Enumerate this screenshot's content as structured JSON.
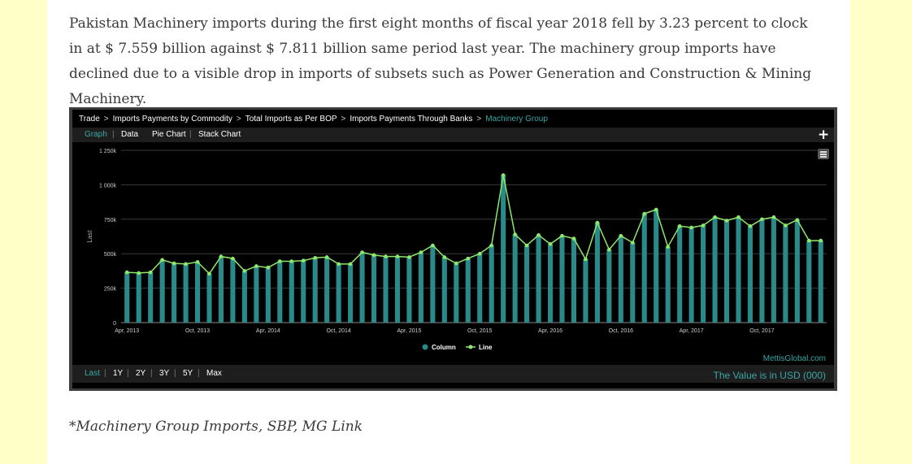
{
  "article": {
    "paragraph": "Pakistan Machinery imports during the first eight months of fiscal year 2018 fell by 3.23 percent to clock in at $ 7.559 billion against $ 7.811 billion same period last year. The machinery group imports have declined due to a visible drop in imports of subsets such as Power Generation and Construction & Mining Machinery.",
    "caption": "*Machinery Group Imports, SBP, MG Link"
  },
  "widget": {
    "breadcrumb": [
      "Trade",
      "Imports Payments by Commodity",
      "Total Imports as Per BOP",
      "Imports Payments Through Banks",
      "Machinery Group"
    ],
    "breadcrumb_sep": ">",
    "tabs": [
      "Graph",
      "Data",
      "Pie Chart",
      "Stack Chart"
    ],
    "active_tab": "Graph",
    "plus_icon": "plus-icon",
    "menu_icon": "hamburger-menu-icon",
    "watermark": "MettisGlobal.com",
    "range_buttons": [
      "Last",
      "1Y",
      "2Y",
      "3Y",
      "5Y",
      "Max"
    ],
    "active_range": "Last",
    "value_note": "The Value is in USD (000)",
    "colors": {
      "accent": "#3aa6a6",
      "column": "#2a8a8a",
      "line": "#8fe86b",
      "background": "#000000"
    }
  },
  "chart_data": {
    "type": "bar",
    "ylabel": "Last",
    "ylim": [
      0,
      1250000
    ],
    "y_ticks": [
      0,
      250000,
      500000,
      750000,
      1000000,
      1250000
    ],
    "y_tick_labels": [
      "0",
      "250k",
      "500k",
      "750k",
      "1 000k",
      "1 250k"
    ],
    "x_tick_labels": [
      {
        "index": 0,
        "label": "Apr, 2013"
      },
      {
        "index": 6,
        "label": "Oct, 2013"
      },
      {
        "index": 12,
        "label": "Apr, 2014"
      },
      {
        "index": 18,
        "label": "Oct, 2014"
      },
      {
        "index": 24,
        "label": "Apr, 2015"
      },
      {
        "index": 30,
        "label": "Oct, 2015"
      },
      {
        "index": 36,
        "label": "Apr, 2016"
      },
      {
        "index": 42,
        "label": "Oct, 2016"
      },
      {
        "index": 48,
        "label": "Apr, 2017"
      },
      {
        "index": 54,
        "label": "Oct, 2017"
      }
    ],
    "categories": [
      "2013-04",
      "2013-05",
      "2013-06",
      "2013-07",
      "2013-08",
      "2013-09",
      "2013-10",
      "2013-11",
      "2013-12",
      "2014-01",
      "2014-02",
      "2014-03",
      "2014-04",
      "2014-05",
      "2014-06",
      "2014-07",
      "2014-08",
      "2014-09",
      "2014-10",
      "2014-11",
      "2014-12",
      "2015-01",
      "2015-02",
      "2015-03",
      "2015-04",
      "2015-05",
      "2015-06",
      "2015-07",
      "2015-08",
      "2015-09",
      "2015-10",
      "2015-11",
      "2015-12",
      "2016-01",
      "2016-02",
      "2016-03",
      "2016-04",
      "2016-05",
      "2016-06",
      "2016-07",
      "2016-08",
      "2016-09",
      "2016-10",
      "2016-11",
      "2016-12",
      "2017-01",
      "2017-02",
      "2017-03",
      "2017-04",
      "2017-05",
      "2017-06",
      "2017-07",
      "2017-08",
      "2017-09",
      "2017-10",
      "2017-11",
      "2017-12",
      "2018-01",
      "2018-02",
      "2018-03"
    ],
    "series": [
      {
        "name": "Column",
        "kind": "column",
        "values": [
          365000,
          360000,
          365000,
          455000,
          430000,
          425000,
          440000,
          355000,
          480000,
          465000,
          375000,
          410000,
          400000,
          445000,
          445000,
          450000,
          470000,
          475000,
          425000,
          425000,
          510000,
          490000,
          480000,
          480000,
          475000,
          510000,
          560000,
          475000,
          430000,
          465000,
          500000,
          560000,
          1070000,
          640000,
          560000,
          635000,
          570000,
          630000,
          610000,
          460000,
          725000,
          530000,
          630000,
          580000,
          790000,
          820000,
          550000,
          700000,
          690000,
          705000,
          765000,
          740000,
          765000,
          700000,
          750000,
          765000,
          705000,
          745000,
          595000,
          595000
        ]
      },
      {
        "name": "Line",
        "kind": "line",
        "values": [
          365000,
          360000,
          365000,
          455000,
          430000,
          425000,
          440000,
          355000,
          480000,
          465000,
          375000,
          410000,
          400000,
          445000,
          445000,
          450000,
          470000,
          475000,
          425000,
          425000,
          510000,
          490000,
          480000,
          480000,
          475000,
          510000,
          560000,
          475000,
          430000,
          465000,
          500000,
          560000,
          1070000,
          640000,
          560000,
          635000,
          570000,
          630000,
          610000,
          460000,
          725000,
          530000,
          630000,
          580000,
          790000,
          820000,
          550000,
          700000,
          690000,
          705000,
          765000,
          740000,
          765000,
          700000,
          750000,
          765000,
          705000,
          745000,
          595000,
          595000
        ]
      }
    ],
    "legend": [
      "Column",
      "Line"
    ],
    "legend_position": "bottom-center",
    "grid": true
  }
}
